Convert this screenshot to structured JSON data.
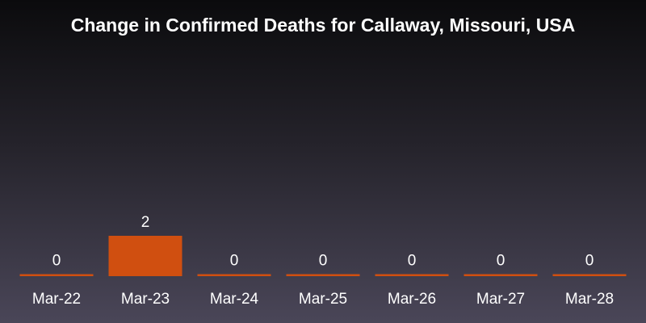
{
  "chart_data": {
    "type": "bar",
    "title": "Change in Confirmed Deaths for Callaway, Missouri, USA",
    "categories": [
      "Mar-22",
      "Mar-23",
      "Mar-24",
      "Mar-25",
      "Mar-26",
      "Mar-27",
      "Mar-28"
    ],
    "values": [
      0,
      2,
      0,
      0,
      0,
      0,
      0
    ],
    "ylim": [
      0,
      2
    ],
    "grid": false,
    "bar_color": "#d04f10"
  }
}
